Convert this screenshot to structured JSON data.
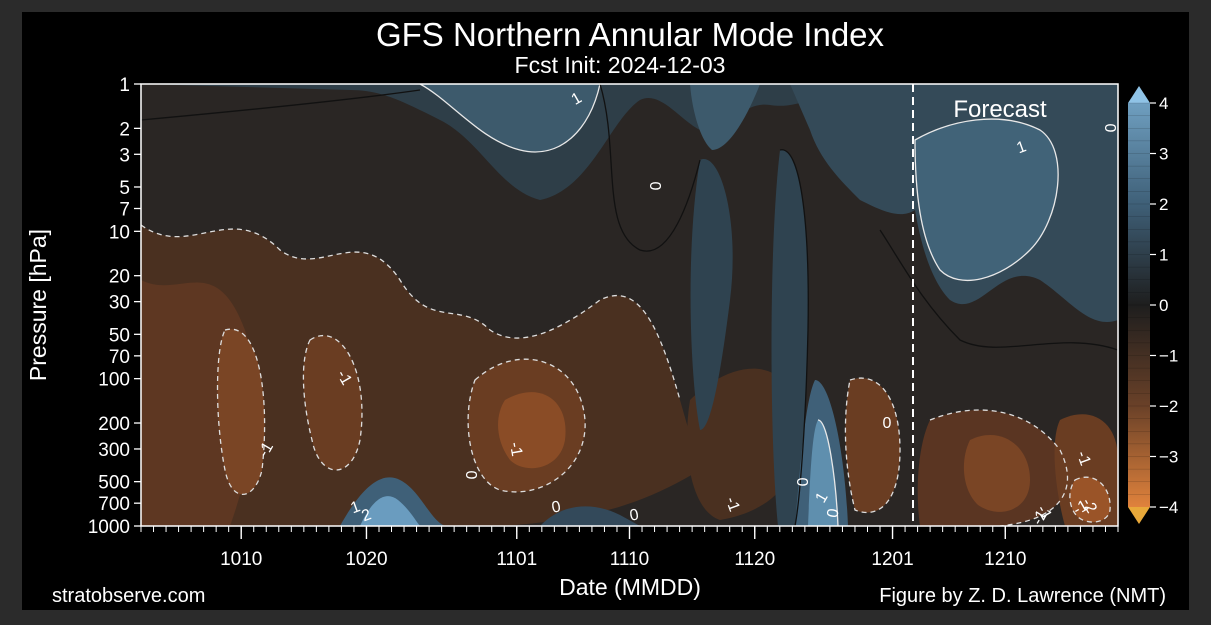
{
  "chart_data": {
    "type": "heatmap",
    "title": "GFS Northern Annular Mode Index",
    "subtitle": "Fcst Init: 2024-12-03",
    "xlabel": "Date (MMDD)",
    "ylabel": "Pressure [hPa]",
    "x_ticks": [
      "1010",
      "1020",
      "1101",
      "1110",
      "1120",
      "1201",
      "1210"
    ],
    "y_ticks": [
      "1",
      "2",
      "3",
      "5",
      "7",
      "10",
      "20",
      "30",
      "50",
      "70",
      "100",
      "200",
      "300",
      "500",
      "700",
      "1000"
    ],
    "y_scale": "log",
    "ylim": [
      1000,
      1
    ],
    "colorbar": {
      "ticks": [
        "4",
        "3",
        "2",
        "1",
        "0",
        "−1",
        "−2",
        "−3",
        "−4"
      ],
      "range": [
        -4,
        4
      ],
      "positive_color": "#5f8fae",
      "neutral_color": "#1e1e1e",
      "negative_color": "#d2763a"
    },
    "forecast_label": "Forecast",
    "forecast_start": "1203",
    "contour_labels": [
      "1",
      "0",
      "0",
      "1",
      "0",
      "-1",
      "-1",
      "-1",
      "0",
      "-1",
      "-1",
      "1",
      "2",
      "0",
      "0",
      "-1",
      "0",
      "1",
      "0",
      "-1",
      "-1",
      "-2"
    ],
    "footer_left": "stratobserve.com",
    "footer_right": "Figure by Z. D. Lawrence (NMT)"
  }
}
